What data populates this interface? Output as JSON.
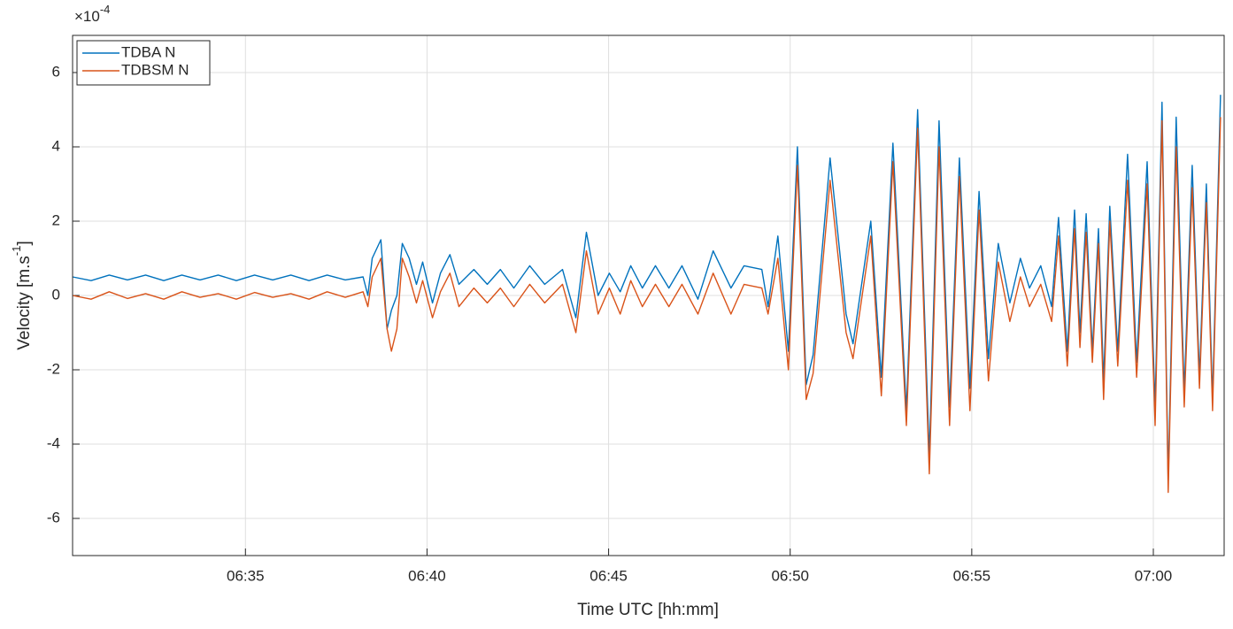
{
  "chart_data": {
    "type": "line",
    "x_label": "Time UTC [hh:mm]",
    "y_label": {
      "main": "Velocity [m.s",
      "sup": "-1",
      "end": "]"
    },
    "y_multiplier": {
      "base": "×10",
      "exponent": "-4"
    },
    "xlim": [
      390.24,
      421.95
    ],
    "xticks": [
      {
        "value": 395,
        "label": "06:35"
      },
      {
        "value": 400,
        "label": "06:40"
      },
      {
        "value": 405,
        "label": "06:45"
      },
      {
        "value": 410,
        "label": "06:50"
      },
      {
        "value": 415,
        "label": "06:55"
      },
      {
        "value": 420,
        "label": "07:00"
      }
    ],
    "ylim": [
      -7,
      7
    ],
    "yticks": [
      -6,
      -4,
      -2,
      0,
      2,
      4,
      6
    ],
    "grid": true,
    "legend": "upper-left",
    "x": [
      390.24,
      390.75,
      391.25,
      391.75,
      392.25,
      392.75,
      393.25,
      393.75,
      394.25,
      394.75,
      395.25,
      395.75,
      396.25,
      396.75,
      397.25,
      397.75,
      398.24,
      398.37,
      398.49,
      398.73,
      398.9,
      399.02,
      399.17,
      399.32,
      399.51,
      399.71,
      399.88,
      400.15,
      400.37,
      400.63,
      400.88,
      401.29,
      401.66,
      402.02,
      402.39,
      402.83,
      403.24,
      403.73,
      404.1,
      404.39,
      404.71,
      405.02,
      405.32,
      405.61,
      405.93,
      406.29,
      406.66,
      407.02,
      407.46,
      407.88,
      408.37,
      408.73,
      409.22,
      409.39,
      409.66,
      409.95,
      410.2,
      410.44,
      410.63,
      411.1,
      411.54,
      411.73,
      412.22,
      412.51,
      412.83,
      413.2,
      413.51,
      413.83,
      414.1,
      414.39,
      414.66,
      414.95,
      415.2,
      415.46,
      415.73,
      416.05,
      416.34,
      416.59,
      416.9,
      417.2,
      417.39,
      417.63,
      417.83,
      417.98,
      418.15,
      418.32,
      418.49,
      418.63,
      418.8,
      419.02,
      419.29,
      419.54,
      419.83,
      420.05,
      420.24,
      420.41,
      420.63,
      420.85,
      421.07,
      421.27,
      421.46,
      421.63,
      421.85
    ],
    "series": [
      {
        "name": "TDBA N",
        "color": "#0072BD",
        "values": [
          0.5,
          0.4,
          0.55,
          0.42,
          0.55,
          0.4,
          0.55,
          0.42,
          0.55,
          0.4,
          0.55,
          0.42,
          0.55,
          0.4,
          0.55,
          0.42,
          0.5,
          0.0,
          1.0,
          1.5,
          -0.9,
          -0.4,
          0.0,
          1.4,
          1.0,
          0.3,
          0.9,
          -0.2,
          0.6,
          1.1,
          0.3,
          0.7,
          0.3,
          0.7,
          0.2,
          0.8,
          0.3,
          0.7,
          -0.6,
          1.7,
          0.0,
          0.6,
          0.1,
          0.8,
          0.2,
          0.8,
          0.2,
          0.8,
          -0.1,
          1.2,
          0.2,
          0.8,
          0.7,
          -0.3,
          1.6,
          -1.5,
          4.0,
          -2.4,
          -1.6,
          3.7,
          -0.5,
          -1.3,
          2.0,
          -2.2,
          4.1,
          -3.1,
          5.0,
          -4.3,
          4.7,
          -3.0,
          3.7,
          -2.5,
          2.8,
          -1.7,
          1.4,
          -0.2,
          1.0,
          0.2,
          0.8,
          -0.3,
          2.1,
          -1.5,
          2.3,
          -1.0,
          2.2,
          -1.5,
          1.8,
          -2.3,
          2.4,
          -1.5,
          3.8,
          -1.8,
          3.6,
          -3.0,
          5.2,
          -5.0,
          4.8,
          -2.6,
          3.5,
          -2.2,
          3.0,
          -2.8,
          5.4
        ]
      },
      {
        "name": "TDBSM N",
        "color": "#D95319",
        "values": [
          0.0,
          -0.1,
          0.1,
          -0.08,
          0.05,
          -0.1,
          0.1,
          -0.05,
          0.05,
          -0.1,
          0.08,
          -0.05,
          0.05,
          -0.1,
          0.1,
          -0.05,
          0.1,
          -0.3,
          0.5,
          1.0,
          -0.9,
          -1.5,
          -0.9,
          1.0,
          0.5,
          -0.2,
          0.4,
          -0.6,
          0.1,
          0.6,
          -0.3,
          0.2,
          -0.2,
          0.2,
          -0.3,
          0.3,
          -0.2,
          0.3,
          -1.0,
          1.2,
          -0.5,
          0.2,
          -0.5,
          0.4,
          -0.3,
          0.3,
          -0.3,
          0.3,
          -0.5,
          0.6,
          -0.5,
          0.3,
          0.2,
          -0.5,
          1.0,
          -2.0,
          3.5,
          -2.8,
          -2.1,
          3.1,
          -1.0,
          -1.7,
          1.6,
          -2.7,
          3.6,
          -3.5,
          4.5,
          -4.8,
          4.0,
          -3.5,
          3.2,
          -3.1,
          2.3,
          -2.3,
          0.9,
          -0.7,
          0.5,
          -0.3,
          0.3,
          -0.7,
          1.6,
          -1.9,
          1.8,
          -1.4,
          1.7,
          -1.8,
          1.4,
          -2.8,
          2.0,
          -1.9,
          3.1,
          -2.2,
          3.0,
          -3.5,
          4.7,
          -5.3,
          4.0,
          -3.0,
          2.9,
          -2.5,
          2.5,
          -3.1,
          4.8
        ]
      }
    ]
  }
}
